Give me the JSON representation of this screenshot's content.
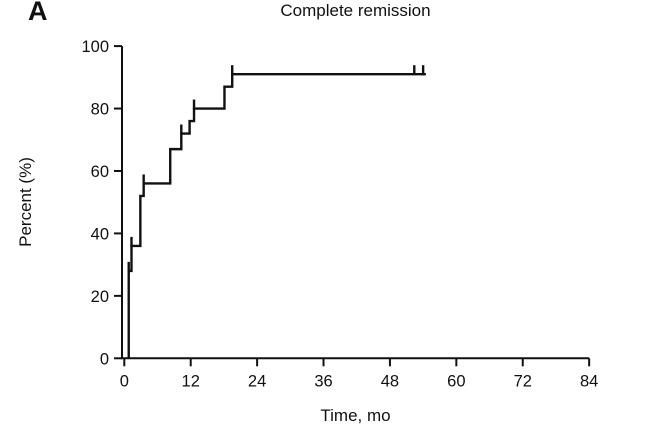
{
  "panel": {
    "label": "A"
  },
  "chart_data": {
    "type": "line",
    "subtype": "kaplan-meier-step-curve",
    "title": "Complete remission",
    "xlabel": "Time, mo",
    "ylabel": "Percent (%)",
    "xlim": [
      0,
      84
    ],
    "ylim": [
      0,
      100
    ],
    "x_ticks": [
      0,
      12,
      24,
      36,
      48,
      60,
      72,
      84
    ],
    "y_ticks": [
      0,
      20,
      40,
      60,
      80,
      100
    ],
    "grid": false,
    "legend": "none",
    "line_color": "#111111",
    "line_width": 2.4,
    "series": [
      {
        "name": "Complete remission",
        "curve_start": {
          "t": 0.8,
          "pct": 0
        },
        "events_step_to": [
          {
            "t": 0.8,
            "pct": 28
          },
          {
            "t": 1.3,
            "pct": 36
          },
          {
            "t": 2.9,
            "pct": 52
          },
          {
            "t": 3.5,
            "pct": 56
          },
          {
            "t": 8.3,
            "pct": 67
          },
          {
            "t": 10.3,
            "pct": 72
          },
          {
            "t": 11.8,
            "pct": 76
          },
          {
            "t": 12.6,
            "pct": 80
          },
          {
            "t": 18.1,
            "pct": 87
          },
          {
            "t": 19.5,
            "pct": 91
          }
        ],
        "plateau_pct": 91,
        "curve_end_t": 54.5,
        "censor_marks": [
          {
            "t": 0.8,
            "pct": 28
          },
          {
            "t": 1.3,
            "pct": 36
          },
          {
            "t": 3.5,
            "pct": 56
          },
          {
            "t": 10.3,
            "pct": 72
          },
          {
            "t": 12.6,
            "pct": 80
          },
          {
            "t": 19.5,
            "pct": 91
          },
          {
            "t": 52.4,
            "pct": 91
          },
          {
            "t": 54.0,
            "pct": 91
          }
        ]
      }
    ]
  }
}
